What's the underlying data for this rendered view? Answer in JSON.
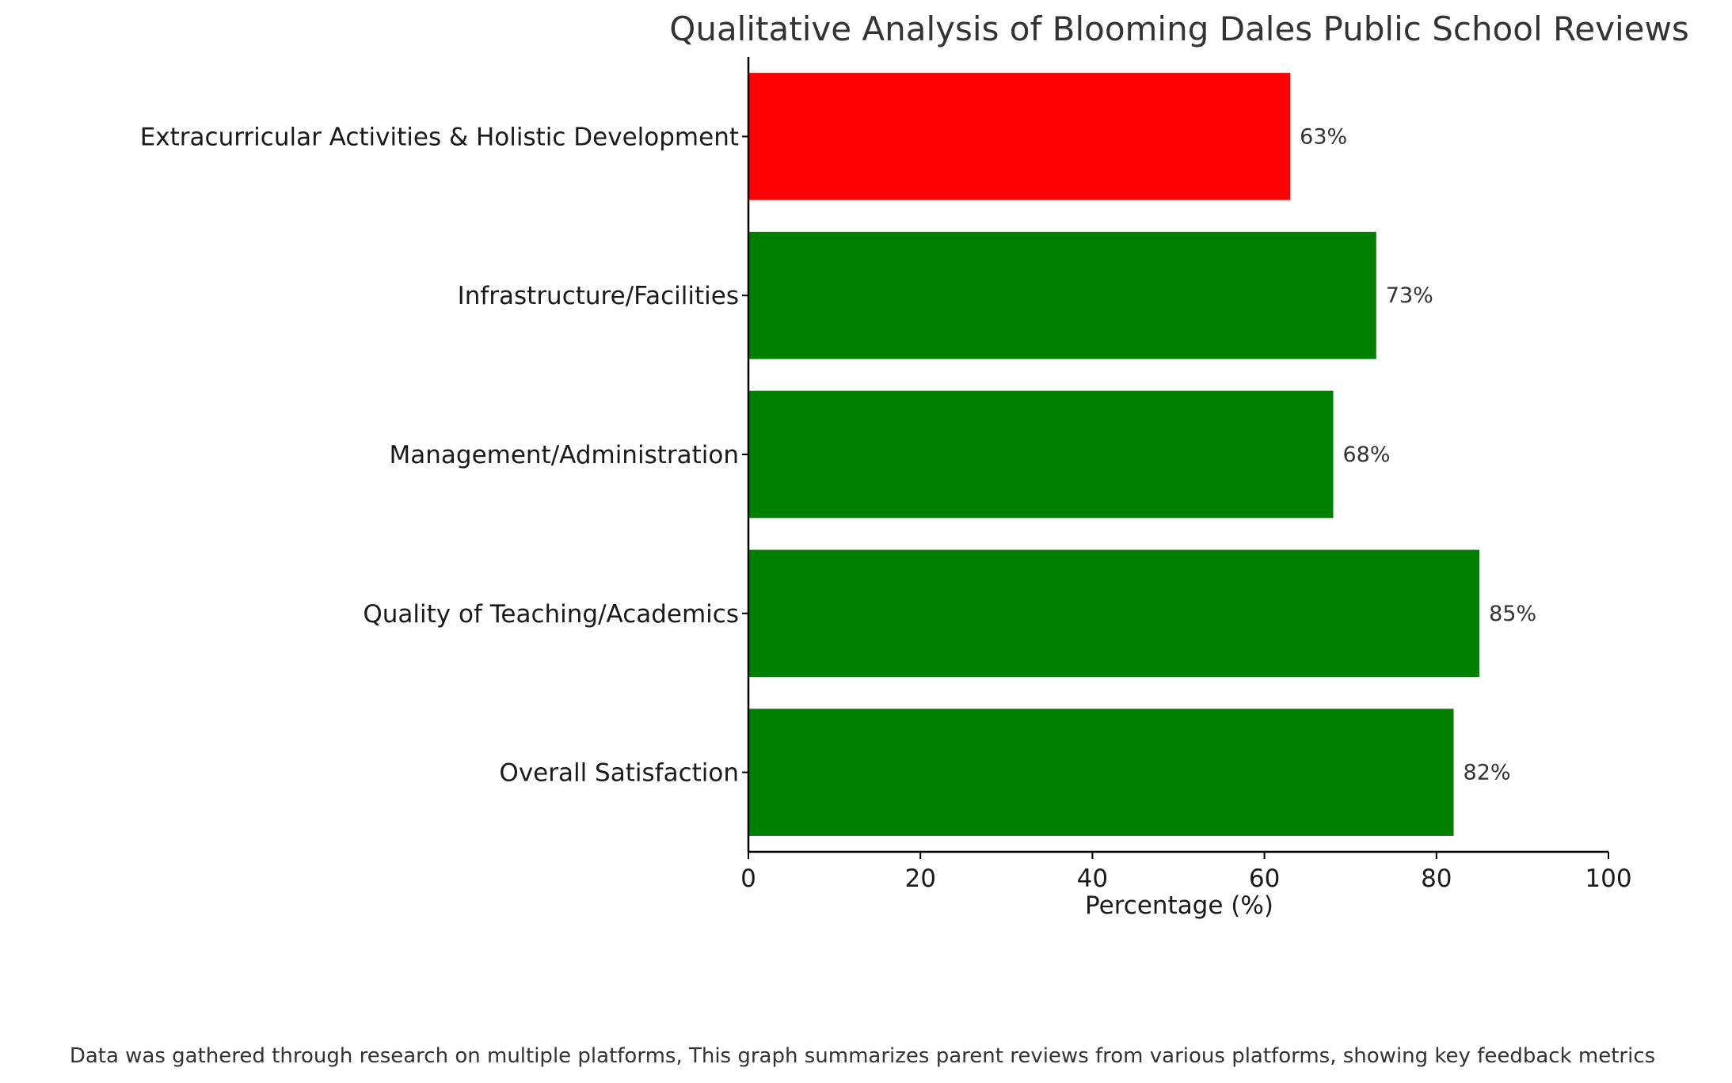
{
  "chart_data": {
    "type": "bar",
    "orientation": "horizontal",
    "title": "Qualitative Analysis of Blooming Dales Public School Reviews",
    "xlabel": "Percentage (%)",
    "ylabel": "",
    "xlim": [
      0,
      100
    ],
    "xticks": [
      0,
      20,
      40,
      60,
      80,
      100
    ],
    "categories": [
      "Overall Satisfaction",
      "Quality of Teaching/Academics",
      "Management/Administration",
      "Infrastructure/Facilities",
      "Extracurricular Activities & Holistic Development"
    ],
    "values": [
      82,
      85,
      68,
      73,
      63
    ],
    "data_labels": [
      "82%",
      "85%",
      "68%",
      "73%",
      "63%"
    ],
    "bar_colors": [
      "#008000",
      "#008000",
      "#008000",
      "#008000",
      "#ff0000"
    ],
    "grid": false,
    "legend": "none",
    "footnote": "Data was gathered through research on multiple platforms, This graph summarizes parent reviews from various platforms, showing key feedback metrics"
  }
}
